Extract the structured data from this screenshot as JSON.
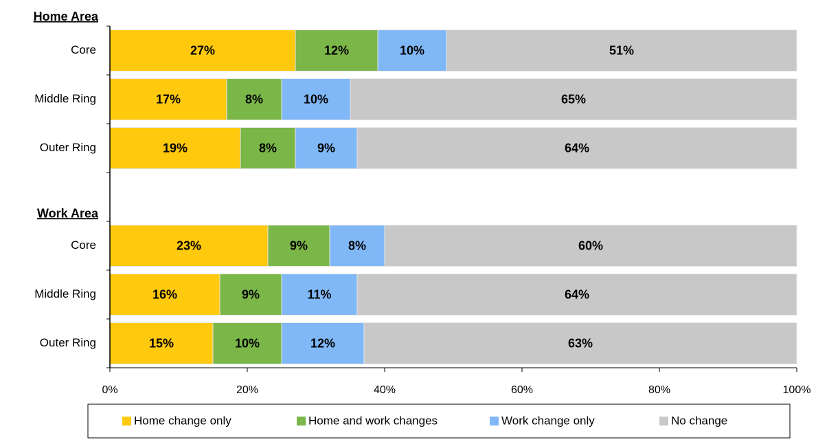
{
  "chart_data": {
    "type": "stacked_barh",
    "group_labels": [
      "Home Area",
      "Work Area"
    ],
    "categories": [
      "Core",
      "Middle Ring",
      "Outer Ring",
      null,
      "Core",
      "Middle Ring",
      "Outer Ring"
    ],
    "series": [
      {
        "name": "Home change only",
        "color": "#ffc90e",
        "values": [
          27,
          17,
          19,
          null,
          23,
          16,
          15
        ],
        "value_labels": [
          "27%",
          "17%",
          "19%",
          null,
          "23%",
          "16%",
          "15%"
        ]
      },
      {
        "name": "Home and work changes",
        "color": "#7ab648",
        "values": [
          12,
          8,
          8,
          null,
          9,
          9,
          10
        ],
        "value_labels": [
          "12%",
          "8%",
          "8%",
          null,
          "9%",
          "9%",
          "10%"
        ]
      },
      {
        "name": "Work change only",
        "color": "#80b8f7",
        "values": [
          10,
          10,
          9,
          null,
          8,
          11,
          12
        ],
        "value_labels": [
          "10%",
          "10%",
          "9%",
          null,
          "8%",
          "11%",
          "12%"
        ]
      },
      {
        "name": "No change",
        "color": "#c8c8c8",
        "values": [
          51,
          65,
          64,
          null,
          60,
          64,
          63
        ],
        "value_labels": [
          "51%",
          "65%",
          "64%",
          null,
          "60%",
          "64%",
          "63%"
        ]
      }
    ],
    "xlim": [
      0,
      100
    ],
    "xticks": [
      {
        "value": 0,
        "label": "0%"
      },
      {
        "value": 20,
        "label": "20%"
      },
      {
        "value": 40,
        "label": "40%"
      },
      {
        "value": 60,
        "label": "60%"
      },
      {
        "value": 80,
        "label": "80%"
      },
      {
        "value": 100,
        "label": "100%"
      }
    ],
    "legend": "bottom"
  }
}
